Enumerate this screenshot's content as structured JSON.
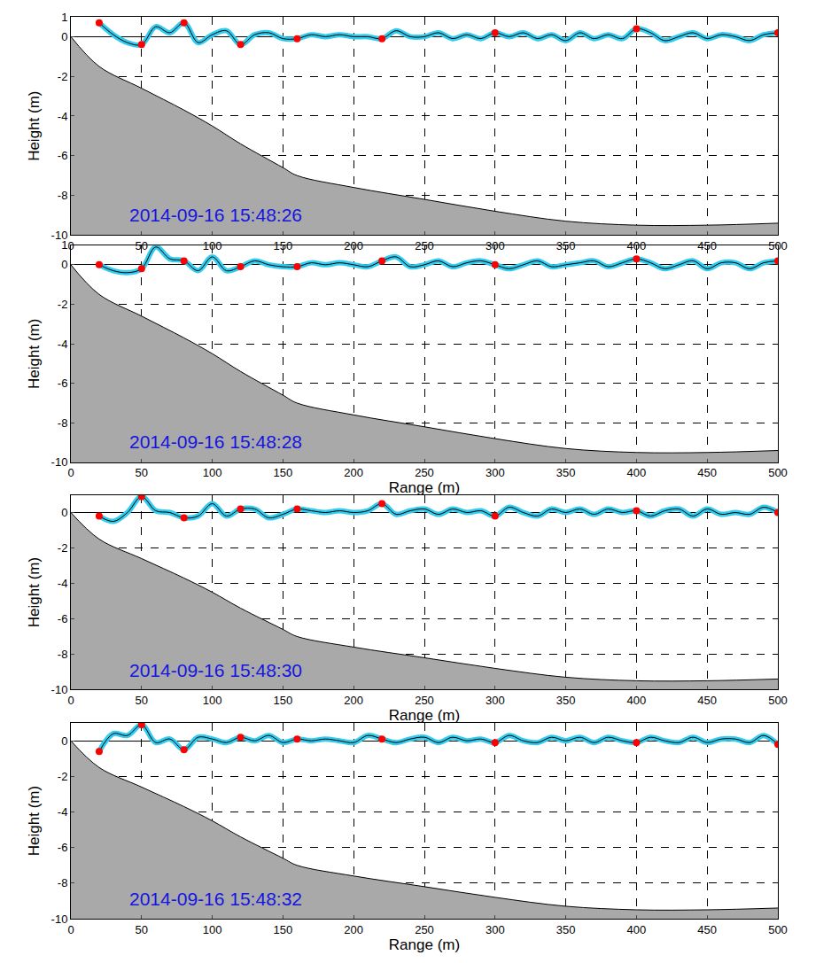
{
  "chart_data": [
    {
      "type": "line",
      "annotation": "2014-09-16 15:48:26",
      "y_label": "Height (m)",
      "xlim": [
        0,
        500
      ],
      "ylim": [
        -10,
        1
      ],
      "xticks": [
        0,
        50,
        100,
        150,
        200,
        250,
        300,
        350,
        400,
        450,
        500
      ],
      "yticks": [
        -10,
        -8,
        -6,
        -4,
        -2,
        0,
        1
      ],
      "grid": true,
      "series": [
        {
          "type": "area",
          "color": "#a9a9a9",
          "x": [
            0,
            20,
            50,
            80,
            100,
            120,
            150,
            160,
            200,
            250,
            300,
            350,
            400,
            450,
            500
          ],
          "values": [
            0,
            -1.5,
            -2.6,
            -3.7,
            -4.5,
            -5.4,
            -6.6,
            -7,
            -7.6,
            -8.2,
            -8.8,
            -9.3,
            -9.5,
            -9.5,
            -9.4
          ]
        },
        {
          "type": "line",
          "color": "#33ccee",
          "x": [
            20,
            30,
            40,
            50,
            60,
            70,
            80,
            90,
            100,
            110,
            120,
            130,
            140,
            150,
            160,
            170,
            180,
            190,
            200,
            210,
            220,
            230,
            240,
            250,
            260,
            270,
            280,
            290,
            300,
            310,
            320,
            330,
            340,
            350,
            360,
            370,
            380,
            390,
            400,
            410,
            420,
            430,
            440,
            450,
            460,
            470,
            480,
            490,
            500
          ],
          "values": [
            0.7,
            0.1,
            -0.3,
            -0.4,
            0.5,
            0.2,
            0.7,
            -0.3,
            0.1,
            0.3,
            -0.4,
            0.1,
            0.2,
            -0.1,
            -0.1,
            0.1,
            0.0,
            0.1,
            0.0,
            0.0,
            -0.1,
            0.3,
            0.0,
            0.0,
            0.2,
            -0.1,
            0.1,
            -0.1,
            0.2,
            0.0,
            0.2,
            -0.1,
            0.1,
            -0.2,
            0.2,
            -0.1,
            0.1,
            -0.1,
            0.4,
            0.2,
            -0.2,
            0.0,
            0.2,
            -0.1,
            0.1,
            0.0,
            -0.2,
            0.1,
            0.2
          ]
        },
        {
          "type": "scatter",
          "color": "#ff0000",
          "marker": "circle",
          "x": [
            20,
            50,
            80,
            120,
            160,
            220,
            300,
            400,
            500
          ],
          "values": [
            0.7,
            -0.4,
            0.7,
            -0.4,
            -0.1,
            -0.1,
            0.2,
            0.4,
            0.2
          ]
        }
      ]
    },
    {
      "type": "line",
      "annotation": "2014-09-16 15:48:28",
      "x_label": "Range (m)",
      "y_label": "Height (m)",
      "xlim": [
        0,
        500
      ],
      "ylim": [
        -10,
        1
      ],
      "xticks": [
        0,
        50,
        100,
        150,
        200,
        250,
        300,
        350,
        400,
        450,
        500
      ],
      "yticks": [
        -10,
        -8,
        -6,
        -4,
        -2,
        0,
        1
      ],
      "grid": true,
      "series": [
        {
          "type": "area",
          "color": "#a9a9a9",
          "x": [
            0,
            20,
            50,
            80,
            100,
            120,
            150,
            160,
            200,
            250,
            300,
            350,
            400,
            450,
            500
          ],
          "values": [
            0,
            -1.5,
            -2.6,
            -3.7,
            -4.5,
            -5.4,
            -6.6,
            -7,
            -7.6,
            -8.2,
            -8.8,
            -9.3,
            -9.5,
            -9.5,
            -9.4
          ]
        },
        {
          "type": "line",
          "color": "#33ccee",
          "x": [
            20,
            30,
            40,
            50,
            60,
            70,
            80,
            90,
            100,
            110,
            120,
            130,
            140,
            150,
            160,
            170,
            180,
            190,
            200,
            210,
            220,
            230,
            240,
            250,
            260,
            270,
            280,
            290,
            300,
            310,
            320,
            330,
            340,
            350,
            360,
            370,
            380,
            390,
            400,
            410,
            420,
            430,
            440,
            450,
            460,
            470,
            480,
            490,
            500
          ],
          "values": [
            0.0,
            -0.3,
            -0.4,
            -0.2,
            0.9,
            0.3,
            0.2,
            -0.3,
            0.4,
            -0.3,
            -0.1,
            0.2,
            0.0,
            -0.1,
            -0.1,
            0.1,
            0.0,
            0.1,
            0.0,
            -0.1,
            0.2,
            0.4,
            -0.1,
            0.0,
            0.2,
            -0.1,
            0.1,
            0.2,
            0.0,
            -0.2,
            0.0,
            0.2,
            -0.1,
            0.0,
            0.1,
            0.2,
            -0.1,
            0.1,
            0.3,
            0.1,
            -0.2,
            0.0,
            0.2,
            -0.2,
            0.1,
            0.1,
            -0.2,
            0.1,
            0.2
          ]
        },
        {
          "type": "scatter",
          "color": "#ff0000",
          "marker": "circle",
          "x": [
            20,
            50,
            80,
            120,
            160,
            220,
            300,
            400,
            500
          ],
          "values": [
            0.0,
            -0.2,
            0.2,
            -0.1,
            -0.1,
            0.2,
            0.0,
            0.3,
            0.2
          ]
        }
      ]
    },
    {
      "type": "line",
      "annotation": "2014-09-16 15:48:30",
      "x_label": "Range (m)",
      "y_label": "Height (m)",
      "xlim": [
        0,
        500
      ],
      "ylim": [
        -10,
        1
      ],
      "xticks": [
        0,
        50,
        100,
        150,
        200,
        250,
        300,
        350,
        400,
        450,
        500
      ],
      "yticks": [
        -10,
        -8,
        -6,
        -4,
        -2,
        0
      ],
      "grid": true,
      "series": [
        {
          "type": "area",
          "color": "#a9a9a9",
          "x": [
            0,
            20,
            50,
            80,
            100,
            120,
            150,
            160,
            200,
            250,
            300,
            350,
            400,
            450,
            500
          ],
          "values": [
            0,
            -1.5,
            -2.6,
            -3.7,
            -4.5,
            -5.4,
            -6.6,
            -7,
            -7.6,
            -8.2,
            -8.8,
            -9.3,
            -9.5,
            -9.5,
            -9.4
          ]
        },
        {
          "type": "line",
          "color": "#33ccee",
          "x": [
            20,
            30,
            40,
            50,
            60,
            70,
            80,
            90,
            100,
            110,
            120,
            130,
            140,
            150,
            160,
            170,
            180,
            190,
            200,
            210,
            220,
            230,
            240,
            250,
            260,
            270,
            280,
            290,
            300,
            310,
            320,
            330,
            340,
            350,
            360,
            370,
            380,
            390,
            400,
            410,
            420,
            430,
            440,
            450,
            460,
            470,
            480,
            490,
            500
          ],
          "values": [
            -0.2,
            -0.5,
            0.0,
            0.9,
            0.1,
            0.0,
            -0.3,
            -0.2,
            0.5,
            -0.2,
            0.2,
            0.2,
            -0.3,
            -0.1,
            0.2,
            0.1,
            0.0,
            0.1,
            0.0,
            0.1,
            0.5,
            -0.1,
            0.1,
            0.2,
            -0.1,
            0.2,
            0.0,
            0.1,
            -0.2,
            0.3,
            0.0,
            -0.2,
            0.2,
            0.0,
            0.2,
            -0.1,
            0.2,
            0.0,
            0.1,
            -0.2,
            0.1,
            0.2,
            -0.2,
            0.2,
            -0.1,
            0.0,
            -0.1,
            0.3,
            0.0
          ]
        },
        {
          "type": "scatter",
          "color": "#ff0000",
          "marker": "circle",
          "x": [
            20,
            50,
            80,
            120,
            160,
            220,
            300,
            400,
            500
          ],
          "values": [
            -0.2,
            0.9,
            -0.3,
            0.2,
            0.2,
            0.5,
            -0.2,
            0.1,
            0.0
          ]
        }
      ]
    },
    {
      "type": "line",
      "annotation": "2014-09-16 15:48:32",
      "x_label": "Range (m)",
      "y_label": "Height (m)",
      "xlim": [
        0,
        500
      ],
      "ylim": [
        -10,
        1
      ],
      "xticks": [
        0,
        50,
        100,
        150,
        200,
        250,
        300,
        350,
        400,
        450,
        500
      ],
      "yticks": [
        -10,
        -8,
        -6,
        -4,
        -2,
        0
      ],
      "grid": true,
      "series": [
        {
          "type": "area",
          "color": "#a9a9a9",
          "x": [
            0,
            20,
            50,
            80,
            100,
            120,
            150,
            160,
            200,
            250,
            300,
            350,
            400,
            450,
            500
          ],
          "values": [
            0,
            -1.5,
            -2.6,
            -3.7,
            -4.5,
            -5.4,
            -6.6,
            -7,
            -7.6,
            -8.2,
            -8.8,
            -9.3,
            -9.5,
            -9.5,
            -9.4
          ]
        },
        {
          "type": "line",
          "color": "#33ccee",
          "x": [
            20,
            30,
            40,
            50,
            60,
            70,
            80,
            90,
            100,
            110,
            120,
            130,
            140,
            150,
            160,
            170,
            180,
            190,
            200,
            210,
            220,
            230,
            240,
            250,
            260,
            270,
            280,
            290,
            300,
            310,
            320,
            330,
            340,
            350,
            360,
            370,
            380,
            390,
            400,
            410,
            420,
            430,
            440,
            450,
            460,
            470,
            480,
            490,
            500
          ],
          "values": [
            -0.6,
            0.4,
            0.3,
            0.9,
            -0.1,
            0.1,
            -0.5,
            0.2,
            0.1,
            -0.1,
            0.2,
            0.0,
            0.3,
            -0.1,
            0.1,
            0.0,
            0.1,
            0.0,
            -0.1,
            0.3,
            0.1,
            -0.1,
            0.1,
            0.2,
            -0.1,
            0.2,
            0.0,
            0.1,
            -0.1,
            0.3,
            0.0,
            -0.1,
            0.2,
            0.0,
            0.2,
            -0.1,
            0.2,
            0.0,
            -0.1,
            0.2,
            0.0,
            -0.1,
            0.2,
            -0.1,
            0.1,
            0.1,
            -0.1,
            0.3,
            -0.2
          ]
        },
        {
          "type": "scatter",
          "color": "#ff0000",
          "marker": "circle",
          "x": [
            20,
            50,
            80,
            120,
            160,
            220,
            300,
            400,
            500
          ],
          "values": [
            -0.6,
            0.9,
            -0.5,
            0.2,
            0.1,
            0.1,
            -0.1,
            -0.1,
            -0.2
          ]
        }
      ]
    }
  ]
}
